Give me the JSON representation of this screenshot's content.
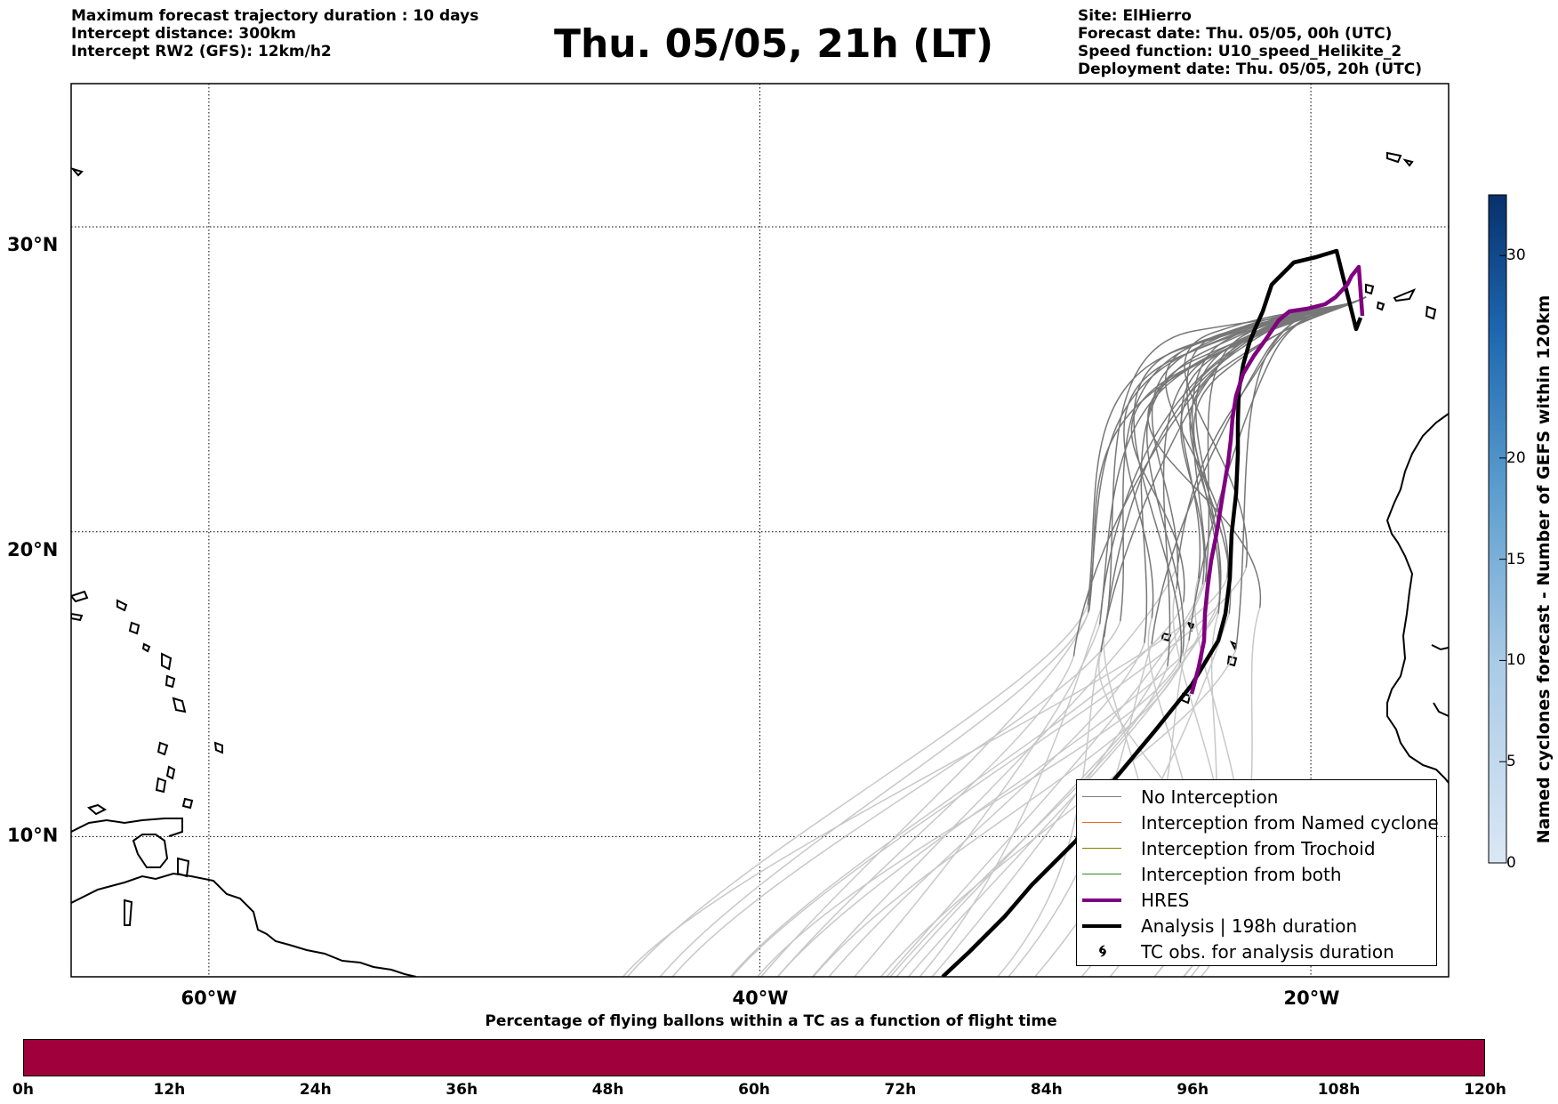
{
  "header": {
    "left": [
      "Maximum forecast trajectory duration : 10 days",
      "Intercept distance: 300km",
      "Intercept RW2 (GFS):  12km/h2"
    ],
    "right": [
      "Site: ElHierro",
      "Forecast date: Thu. 05/05, 00h (UTC)",
      "Speed function: U10_speed_Helikite_2",
      "Deployment date: Thu. 05/05, 20h (UTC)"
    ]
  },
  "title": "Thu. 05/05, 21h (LT)",
  "map": {
    "lat_ticks": [
      "30°N",
      "20°N",
      "10°N"
    ],
    "lon_ticks": [
      "60°W",
      "40°W",
      "20°W"
    ],
    "lat_values": [
      30,
      20,
      10
    ],
    "lon_values": [
      -60,
      -40,
      -20
    ],
    "lon_range": [
      -65,
      -15
    ],
    "lat_range": [
      5.4,
      34.7
    ],
    "site": "ElHierro",
    "site_lon": -18.0,
    "site_lat": 27.7
  },
  "legend": {
    "items": [
      {
        "label": "No Interception",
        "color": "#808080"
      },
      {
        "label": "Interception from Named cyclone",
        "color": "#f26522"
      },
      {
        "label": "Interception from Trochoid",
        "color": "#808000"
      },
      {
        "label": "Interception from both",
        "color": "#228b22"
      },
      {
        "label": "HRES",
        "color": "#800080"
      },
      {
        "label": "Analysis | 198h duration",
        "color": "#000000"
      },
      {
        "label": "TC obs. for analysis duration",
        "color": "#000000"
      }
    ]
  },
  "colorbar": {
    "label": "Named cyclones forecast - Number of GEFS within 120km",
    "ticks": [
      "0",
      "5",
      "10",
      "15",
      "20",
      "30"
    ],
    "values": [
      0,
      5,
      10,
      15,
      20,
      30
    ],
    "max": 33,
    "colors": [
      "#d6e4f4",
      "#c6dbef",
      "#b0cfe8",
      "#9ecae1",
      "#7fb5da",
      "#6baed6",
      "#4f9acb",
      "#4292c6",
      "#3580bd",
      "#2171b5",
      "#1764ab",
      "#08519c",
      "#084a91",
      "#083b7c",
      "#08306b"
    ]
  },
  "time_bar": {
    "title": "Percentage of flying ballons within a TC as a function of flight time",
    "ticks": [
      "0h",
      "12h",
      "24h",
      "36h",
      "48h",
      "60h",
      "72h",
      "84h",
      "96h",
      "108h",
      "120h"
    ],
    "max_hours": 120,
    "color": "#a0003b"
  }
}
